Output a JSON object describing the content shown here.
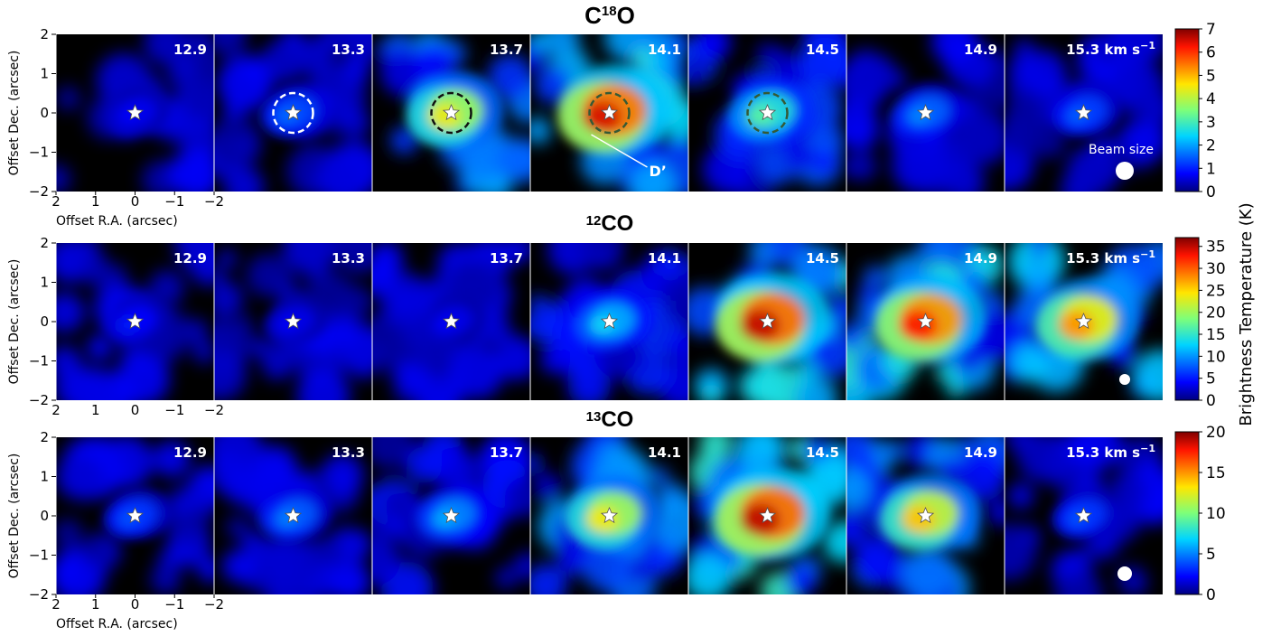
{
  "figure": {
    "velocity_unit": "km s",
    "velocity_unit_exp": "−1",
    "rows": [
      {
        "id": "c18o",
        "title_pre": "C",
        "title_sup": "18",
        "title_post": "O",
        "colorbar_ticks": [
          "0",
          "1",
          "2",
          "3",
          "4",
          "5",
          "6",
          "7"
        ],
        "colorbar_max": 7,
        "peak_K": [
          0.8,
          1.6,
          4.5,
          6.5,
          3.2,
          1.8,
          1.5
        ],
        "show_xaxis": true,
        "beam_label": "Beam size",
        "annotation": "D’"
      },
      {
        "id": "12co",
        "title_pre": "",
        "title_sup": "12",
        "title_post": "CO",
        "colorbar_ticks": [
          "0",
          "5",
          "10",
          "15",
          "20",
          "25",
          "30",
          "35"
        ],
        "colorbar_max": 37,
        "peak_K": [
          5,
          4,
          4,
          13,
          35,
          33,
          28
        ],
        "show_xaxis": false
      },
      {
        "id": "13co",
        "title_pre": "",
        "title_sup": "13",
        "title_post": "CO",
        "colorbar_ticks": [
          "0",
          "5",
          "10",
          "15",
          "20"
        ],
        "colorbar_max": 20,
        "peak_K": [
          4,
          5,
          6,
          13,
          19,
          14,
          4
        ],
        "show_xaxis": true
      }
    ],
    "velocities": [
      "12.9",
      "13.3",
      "13.7",
      "14.1",
      "14.5",
      "14.9",
      "15.3"
    ],
    "ylabel": "Offset Dec. (arcsec)",
    "xlabel": "Offset R.A. (arcsec)",
    "yticks": [
      "2",
      "1",
      "0",
      "−1",
      "−2"
    ],
    "xticks": [
      "2",
      "1",
      "0",
      "−1",
      "−2"
    ],
    "colorbar_label": "Brightness Temperature (K)"
  }
}
